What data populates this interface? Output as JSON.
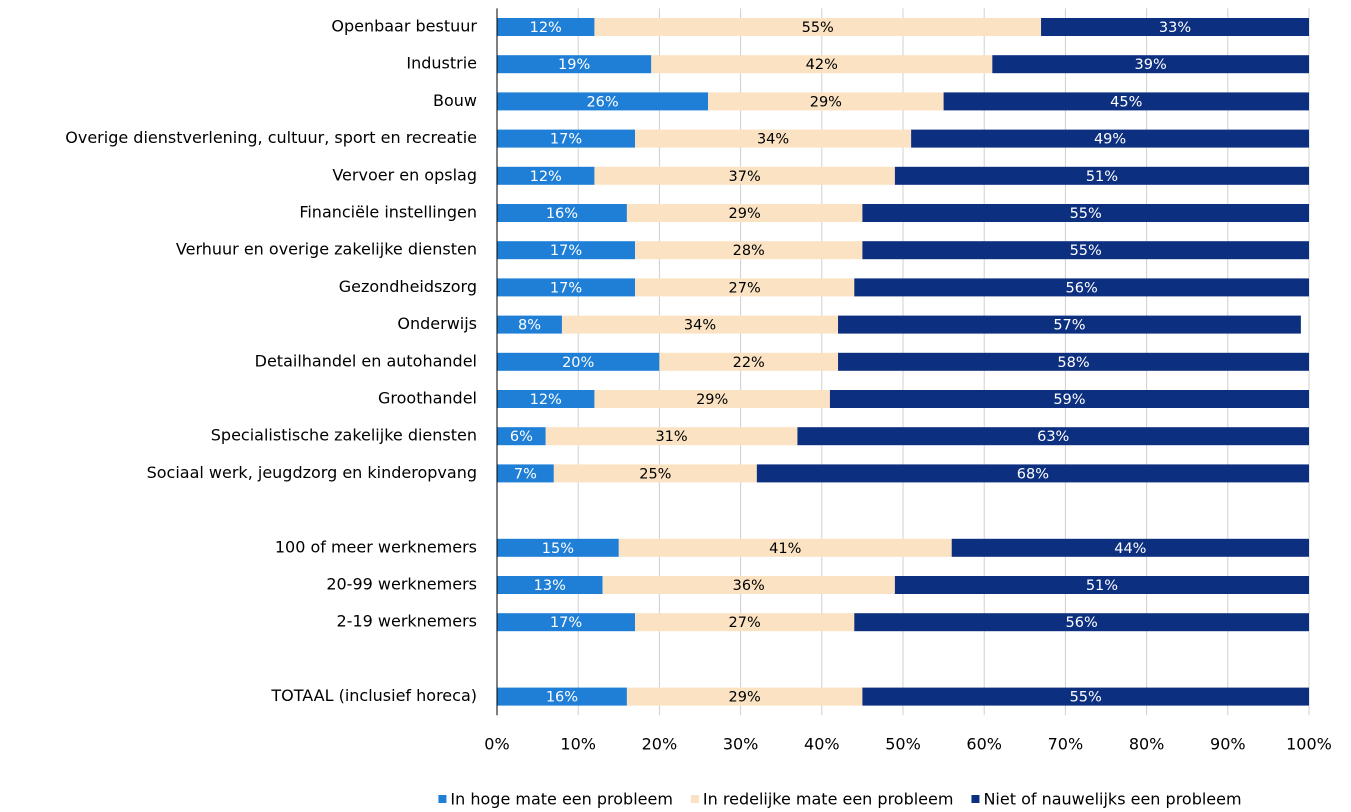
{
  "chart_data": {
    "type": "stacked_barh",
    "categories": [
      "Openbaar bestuur",
      "Industrie",
      "Bouw",
      "Overige dienstverlening, cultuur, sport en recreatie",
      "Vervoer en opslag",
      "Financiële instellingen",
      "Verhuur en overige zakelijke diensten",
      "Gezondheidszorg",
      "Onderwijs",
      "Detailhandel en autohandel",
      "Groothandel",
      "Specialistische zakelijke diensten",
      "Sociaal werk, jeugdzorg en kinderopvang",
      null,
      "100 of meer werknemers",
      "20-99 werknemers",
      "2-19 werknemers",
      null,
      "TOTAAL (inclusief horeca)"
    ],
    "series": [
      {
        "name": "In hoge mate een probleem",
        "color": "#1f7fd6",
        "label_color": "#ffffff",
        "values": [
          12,
          19,
          26,
          17,
          12,
          16,
          17,
          17,
          8,
          20,
          12,
          6,
          7,
          null,
          15,
          13,
          17,
          null,
          16
        ],
        "value_labels": [
          "12%",
          "19%",
          "26%",
          "17%",
          "12%",
          "16%",
          "17%",
          "17%",
          "8%",
          "20%",
          "12%",
          "6%",
          "7%",
          null,
          "15%",
          "13%",
          "17%",
          null,
          "16%"
        ]
      },
      {
        "name": "In redelijke mate een probleem",
        "color": "#fae2c3",
        "label_color": "#000000",
        "values": [
          55,
          42,
          29,
          34,
          37,
          29,
          28,
          27,
          34,
          22,
          29,
          31,
          25,
          null,
          41,
          36,
          27,
          null,
          29
        ],
        "value_labels": [
          "55%",
          "42%",
          "29%",
          "34%",
          "37%",
          "29%",
          "28%",
          "27%",
          "34%",
          "22%",
          "29%",
          "31%",
          "25%",
          null,
          "41%",
          "36%",
          "27%",
          null,
          "29%"
        ]
      },
      {
        "name": "Niet of nauwelijks een probleem",
        "color": "#0d2f80",
        "label_color": "#ffffff",
        "values": [
          33,
          39,
          45,
          49,
          51,
          55,
          55,
          56,
          57,
          58,
          59,
          63,
          68,
          null,
          44,
          51,
          56,
          null,
          55
        ],
        "value_labels": [
          "33%",
          "39%",
          "45%",
          "49%",
          "51%",
          "55%",
          "55%",
          "56%",
          "57%",
          "58%",
          "59%",
          "63%",
          "68%",
          null,
          "44%",
          "51%",
          "56%",
          null,
          "55%"
        ]
      }
    ],
    "xlim": [
      0,
      100
    ],
    "xticks": [
      {
        "value": 0,
        "label": "0%"
      },
      {
        "value": 10,
        "label": "10%"
      },
      {
        "value": 20,
        "label": "20%"
      },
      {
        "value": 30,
        "label": "30%"
      },
      {
        "value": 40,
        "label": "40%"
      },
      {
        "value": 50,
        "label": "50%"
      },
      {
        "value": 60,
        "label": "60%"
      },
      {
        "value": 70,
        "label": "70%"
      },
      {
        "value": 80,
        "label": "80%"
      },
      {
        "value": 90,
        "label": "90%"
      },
      {
        "value": 100,
        "label": "100%"
      }
    ],
    "grid": true,
    "legend": "bottom"
  }
}
